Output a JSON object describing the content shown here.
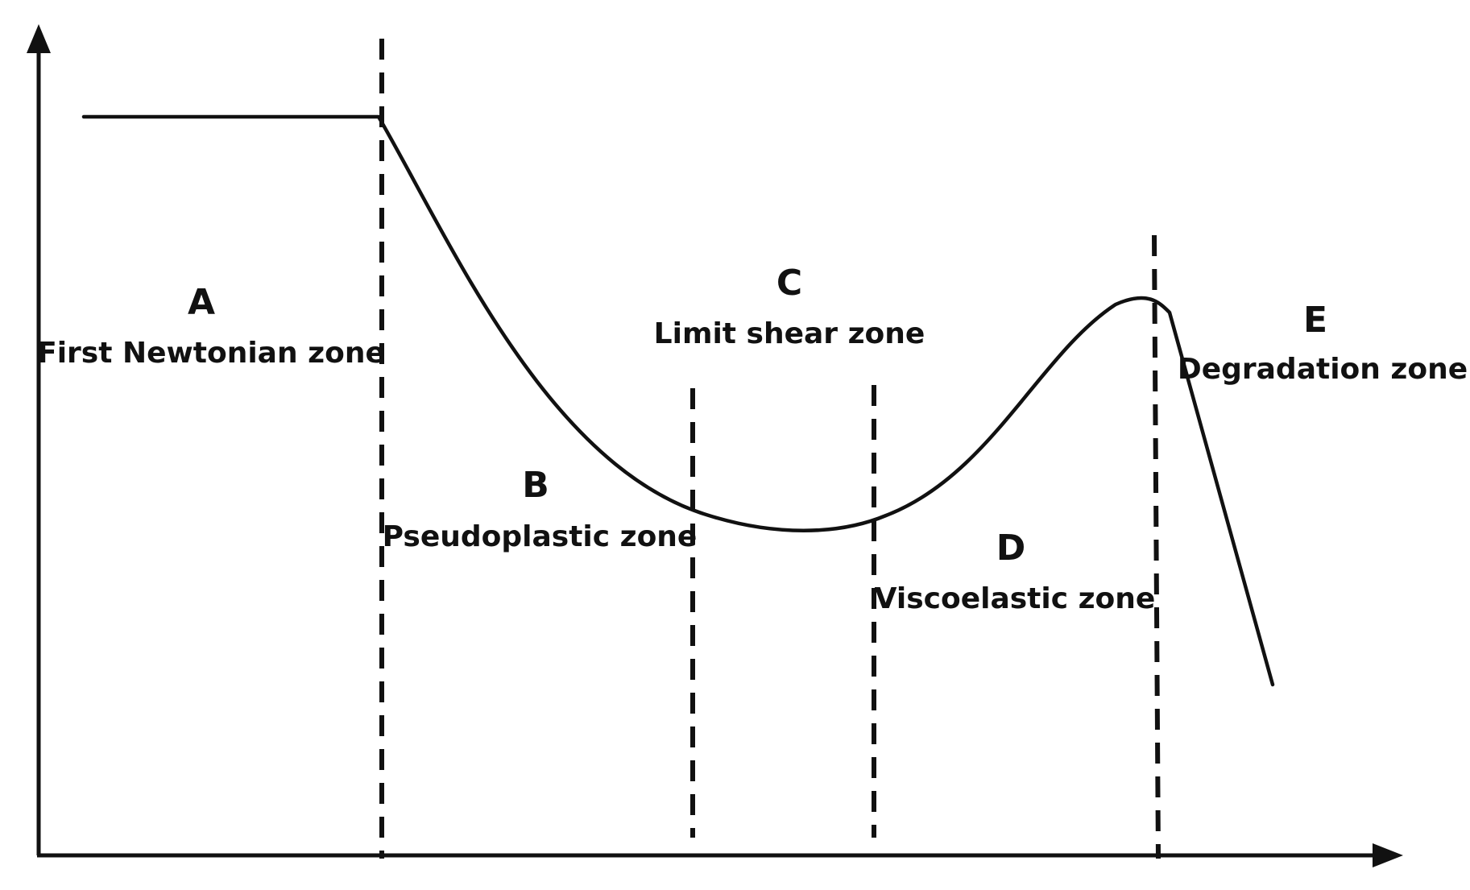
{
  "zones": [
    {
      "letter": "A",
      "name": "First Newtonian zone"
    },
    {
      "letter": "B",
      "name": "Pseudoplastic zone"
    },
    {
      "letter": "C",
      "name": "Limit shear zone"
    },
    {
      "letter": "D",
      "name": "Viscoelastic zone"
    },
    {
      "letter": "E",
      "name": "Degradation zone"
    }
  ],
  "colors": {
    "ink": "#111111",
    "background": "#ffffff"
  }
}
